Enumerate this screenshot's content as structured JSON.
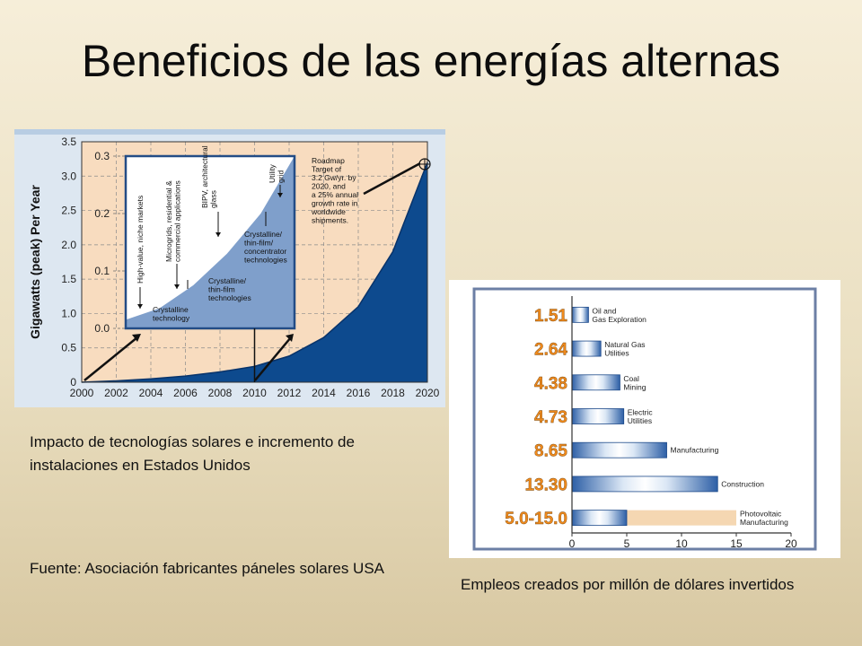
{
  "slide": {
    "title": "Beneficios de las energías alternas",
    "caption_left": "Impacto de tecnologías solares e incremento de instalaciones en Estados Unidos",
    "caption_source": "Fuente: Asociación fabricantes páneles solares USA",
    "caption_right": "Empleos creados por millón de dólares invertidos"
  },
  "chart_data": [
    {
      "type": "area",
      "title": "",
      "ylabel": "Gigawatts (peak) Per Year",
      "xlabel": "",
      "x": [
        2000,
        2002,
        2004,
        2006,
        2008,
        2010,
        2012,
        2014,
        2016,
        2018,
        2020
      ],
      "y": [
        0.0,
        0.02,
        0.05,
        0.09,
        0.15,
        0.23,
        0.38,
        0.65,
        1.1,
        1.9,
        3.2
      ],
      "xlim": [
        2000,
        2020
      ],
      "ylim": [
        0,
        3.5
      ],
      "yticks": [
        0,
        0.5,
        1.0,
        1.5,
        2.0,
        2.5,
        3.0,
        3.5
      ],
      "xticks": [
        2000,
        2002,
        2004,
        2006,
        2008,
        2010,
        2012,
        2014,
        2016,
        2018,
        2020
      ],
      "grid": true,
      "inset": {
        "ylim": [
          0.0,
          0.3
        ],
        "yticks": [
          "0.0",
          "0.1",
          "0.2",
          "0.3"
        ],
        "x": [
          2000,
          2002,
          2004,
          2006,
          2008,
          2010
        ],
        "y": [
          0.015,
          0.035,
          0.075,
          0.13,
          0.2,
          0.3
        ],
        "annotations": [
          {
            "text": "High-value, niche markets",
            "x": 2000.4,
            "y": 0.02
          },
          {
            "text": "Microgrids, residential & commercial applications",
            "x": 2003.0,
            "y": 0.08
          },
          {
            "text": "BIPV, architectural glass",
            "x": 2005.3,
            "y": 0.13
          },
          {
            "text": "Utility grid",
            "x": 2009.2,
            "y": 0.26
          },
          {
            "text": "Crystalline technology",
            "x": 2000.6,
            "y": 0.0
          },
          {
            "text": "Crystalline/ thin-film technologies",
            "x": 2003.8,
            "y": 0.04
          },
          {
            "text": "Crystalline/ thin-film/ concentrator technologies",
            "x": 2007.2,
            "y": 0.11
          }
        ]
      },
      "annotations": [
        {
          "text": "Roadmap Target of 3.2 Gw/yr. by 2020, and a 25% annual growth rate in worldwide shipments.",
          "x": 2013.8,
          "y": 3.2
        }
      ]
    },
    {
      "type": "bar",
      "orientation": "horizontal",
      "categories": [
        "Oil and Gas Exploration",
        "Natural Gas Utilities",
        "Coal Mining",
        "Electric Utilities",
        "Manufacturing",
        "Construction",
        "Photovoltaic Manufacturing"
      ],
      "value_labels": [
        "1.51",
        "2.64",
        "4.38",
        "4.73",
        "8.65",
        "13.30",
        "5.0-15.0"
      ],
      "values": [
        1.51,
        2.64,
        4.38,
        4.73,
        8.65,
        13.3,
        5.0
      ],
      "range_high": [
        null,
        null,
        null,
        null,
        null,
        null,
        15.0
      ],
      "xlim": [
        0,
        20
      ],
      "xticks": [
        0,
        5,
        10,
        15,
        20
      ],
      "colors": {
        "bar": "#2d5fa6",
        "bar_highlight": "#dbe7f5",
        "range": "#f5d7b2",
        "value_label": "#f08a1c"
      }
    }
  ],
  "colors": {
    "fill_dark": "#0d4a8e",
    "fill_light": "#7f9fcb",
    "plot_bg": "#f8dcbf"
  }
}
